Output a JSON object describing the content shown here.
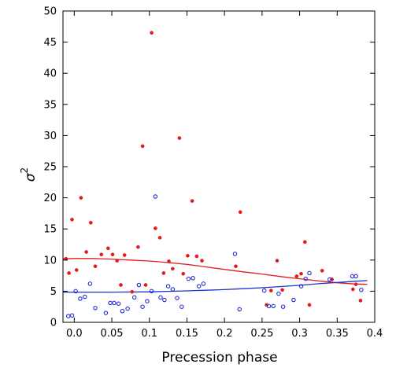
{
  "chart_data": {
    "type": "scatter",
    "title": "",
    "xlabel": "Precession phase",
    "ylabel": "σ",
    "ylabel_superscript": "2",
    "xlim": [
      -0.015,
      0.4
    ],
    "ylim": [
      0,
      50
    ],
    "xticks": [
      0.0,
      0.05,
      0.1,
      0.15,
      0.2,
      0.25,
      0.3,
      0.35,
      0.4
    ],
    "xtick_labels": [
      "0.0",
      "0.05",
      "0.1",
      "0.15",
      "0.2",
      "0.25",
      "0.3",
      "0.35",
      "0.4"
    ],
    "yticks": [
      0,
      5,
      10,
      15,
      20,
      25,
      30,
      35,
      40,
      45,
      50
    ],
    "ytick_labels": [
      "0",
      "5",
      "10",
      "15",
      "20",
      "25",
      "30",
      "35",
      "40",
      "45",
      "50"
    ],
    "grid": false,
    "series": [
      {
        "marker": "filled-circle",
        "color": "#e41a1c",
        "points": [
          [
            -0.011,
            10.2
          ],
          [
            -0.007,
            7.9
          ],
          [
            -0.003,
            16.5
          ],
          [
            0.003,
            8.4
          ],
          [
            0.009,
            20.0
          ],
          [
            0.016,
            11.3
          ],
          [
            0.022,
            16.0
          ],
          [
            0.028,
            9.0
          ],
          [
            0.036,
            10.9
          ],
          [
            0.045,
            11.9
          ],
          [
            0.051,
            10.9
          ],
          [
            0.057,
            9.9
          ],
          [
            0.062,
            6.0
          ],
          [
            0.067,
            10.8
          ],
          [
            0.077,
            4.9
          ],
          [
            0.085,
            12.1
          ],
          [
            0.091,
            28.3
          ],
          [
            0.095,
            6.0
          ],
          [
            0.103,
            46.5
          ],
          [
            0.108,
            15.1
          ],
          [
            0.114,
            13.6
          ],
          [
            0.119,
            7.9
          ],
          [
            0.126,
            9.8
          ],
          [
            0.131,
            8.6
          ],
          [
            0.14,
            29.6
          ],
          [
            0.145,
            7.8
          ],
          [
            0.151,
            10.7
          ],
          [
            0.157,
            19.5
          ],
          [
            0.163,
            10.6
          ],
          [
            0.17,
            9.9
          ],
          [
            0.215,
            9.0
          ],
          [
            0.221,
            17.7
          ],
          [
            0.256,
            2.8
          ],
          [
            0.262,
            5.1
          ],
          [
            0.27,
            9.9
          ],
          [
            0.277,
            5.2
          ],
          [
            0.296,
            7.4
          ],
          [
            0.302,
            7.8
          ],
          [
            0.307,
            12.9
          ],
          [
            0.313,
            2.8
          ],
          [
            0.33,
            8.3
          ],
          [
            0.343,
            6.9
          ],
          [
            0.371,
            5.3
          ],
          [
            0.375,
            6.1
          ],
          [
            0.381,
            3.5
          ]
        ]
      },
      {
        "marker": "open-circle",
        "color": "#1f2fd0",
        "points": [
          [
            -0.008,
            1.0
          ],
          [
            -0.003,
            1.1
          ],
          [
            0.002,
            5.0
          ],
          [
            0.008,
            3.8
          ],
          [
            0.014,
            4.1
          ],
          [
            0.021,
            6.2
          ],
          [
            0.028,
            2.3
          ],
          [
            0.042,
            1.5
          ],
          [
            0.048,
            3.1
          ],
          [
            0.053,
            3.1
          ],
          [
            0.059,
            3.0
          ],
          [
            0.064,
            1.8
          ],
          [
            0.071,
            2.2
          ],
          [
            0.08,
            4.0
          ],
          [
            0.086,
            6.0
          ],
          [
            0.091,
            2.5
          ],
          [
            0.097,
            3.4
          ],
          [
            0.103,
            5.0
          ],
          [
            0.108,
            20.2
          ],
          [
            0.115,
            4.0
          ],
          [
            0.12,
            3.6
          ],
          [
            0.125,
            5.8
          ],
          [
            0.131,
            5.3
          ],
          [
            0.137,
            3.9
          ],
          [
            0.143,
            2.5
          ],
          [
            0.152,
            7.0
          ],
          [
            0.158,
            7.1
          ],
          [
            0.166,
            5.8
          ],
          [
            0.172,
            6.2
          ],
          [
            0.214,
            11.0
          ],
          [
            0.22,
            2.1
          ],
          [
            0.253,
            5.1
          ],
          [
            0.259,
            2.6
          ],
          [
            0.265,
            2.6
          ],
          [
            0.272,
            4.6
          ],
          [
            0.278,
            2.5
          ],
          [
            0.292,
            3.6
          ],
          [
            0.302,
            5.8
          ],
          [
            0.308,
            7.0
          ],
          [
            0.313,
            7.9
          ],
          [
            0.34,
            6.9
          ],
          [
            0.37,
            7.4
          ],
          [
            0.375,
            7.4
          ],
          [
            0.382,
            5.2
          ]
        ]
      }
    ],
    "fit_lines": [
      {
        "color": "#e41a1c",
        "points": [
          [
            -0.015,
            10.2
          ],
          [
            0.0,
            10.25
          ],
          [
            0.025,
            10.25
          ],
          [
            0.05,
            10.15
          ],
          [
            0.075,
            10.0
          ],
          [
            0.1,
            9.85
          ],
          [
            0.125,
            9.6
          ],
          [
            0.15,
            9.3
          ],
          [
            0.175,
            8.9
          ],
          [
            0.2,
            8.5
          ],
          [
            0.225,
            8.1
          ],
          [
            0.25,
            7.75
          ],
          [
            0.275,
            7.35
          ],
          [
            0.3,
            7.0
          ],
          [
            0.325,
            6.65
          ],
          [
            0.35,
            6.35
          ],
          [
            0.375,
            6.15
          ],
          [
            0.39,
            6.1
          ]
        ]
      },
      {
        "color": "#1f2fd0",
        "points": [
          [
            -0.015,
            4.85
          ],
          [
            0.0,
            4.85
          ],
          [
            0.025,
            4.85
          ],
          [
            0.05,
            4.85
          ],
          [
            0.075,
            4.88
          ],
          [
            0.1,
            4.9
          ],
          [
            0.125,
            4.97
          ],
          [
            0.15,
            5.05
          ],
          [
            0.175,
            5.15
          ],
          [
            0.2,
            5.25
          ],
          [
            0.225,
            5.4
          ],
          [
            0.25,
            5.55
          ],
          [
            0.275,
            5.75
          ],
          [
            0.3,
            5.95
          ],
          [
            0.325,
            6.2
          ],
          [
            0.35,
            6.4
          ],
          [
            0.375,
            6.6
          ],
          [
            0.39,
            6.7
          ]
        ]
      }
    ]
  }
}
